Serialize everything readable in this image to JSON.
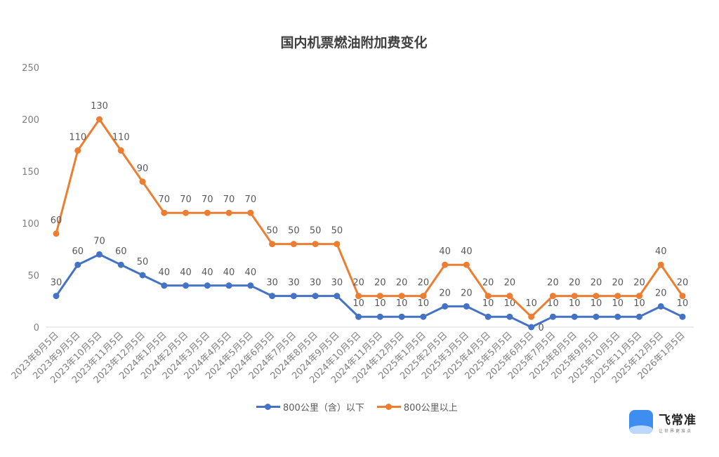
{
  "chart_data": {
    "type": "line",
    "stacked": true,
    "title": "国内机票燃油附加费变化",
    "xlabel": "",
    "ylabel": "",
    "ylim": [
      0,
      250
    ],
    "yticks": [
      "0",
      "50",
      "100",
      "150",
      "200",
      "250"
    ],
    "grid": false,
    "legend": "bottom",
    "categories": [
      "2023年8月5日",
      "2023年9月5日",
      "2023年10月5日",
      "2023年11月5日",
      "2023年12月5日",
      "2024年1月5日",
      "2024年2月5日",
      "2024年3月5日",
      "2024年4月5日",
      "2024年5月5日",
      "2024年6月5日",
      "2024年7月5日",
      "2024年8月5日",
      "2024年9月5日",
      "2024年10月5日",
      "2024年11月5日",
      "2024年12月5日",
      "2025年1月5日",
      "2025年2月5日",
      "2025年3月5日",
      "2025年4月5日",
      "2025年5月5日",
      "2025年6月5日",
      "2025年7月5日",
      "2025年8月5日",
      "2025年9月5日",
      "2025年10月5日",
      "2025年11月5日",
      "2025年12月5日",
      "2026年1月5日"
    ],
    "series": [
      {
        "name": "800公里（含）以下",
        "color": "#4472C4",
        "values": [
          30,
          60,
          70,
          60,
          50,
          40,
          40,
          40,
          40,
          40,
          30,
          30,
          30,
          30,
          10,
          10,
          10,
          10,
          20,
          20,
          10,
          10,
          0,
          10,
          10,
          10,
          10,
          10,
          20,
          10
        ]
      },
      {
        "name": "800公里以上",
        "color": "#ED7D31",
        "values": [
          60,
          110,
          130,
          110,
          90,
          70,
          70,
          70,
          70,
          70,
          50,
          50,
          50,
          50,
          20,
          20,
          20,
          20,
          40,
          40,
          20,
          20,
          10,
          20,
          20,
          20,
          20,
          20,
          40,
          20
        ]
      }
    ]
  },
  "logo": {
    "name": "飞常准",
    "slogan": "让世界更准点"
  }
}
